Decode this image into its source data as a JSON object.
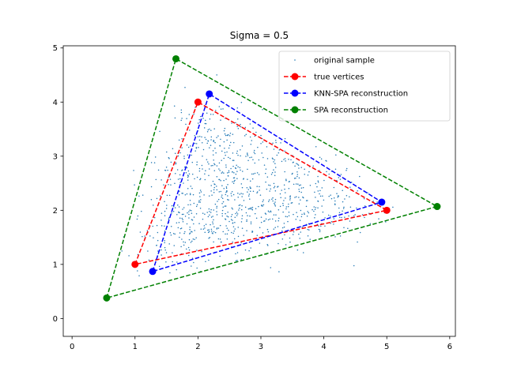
{
  "chart_data": {
    "type": "scatter",
    "title": "Sigma = 0.5",
    "xlabel": "",
    "ylabel": "",
    "xlim": [
      -0.14,
      6.09
    ],
    "ylim": [
      -0.33,
      5.04
    ],
    "xticks": [
      "0",
      "1",
      "2",
      "3",
      "4",
      "5",
      "6"
    ],
    "yticks": [
      "0",
      "1",
      "2",
      "3",
      "4",
      "5"
    ],
    "grid": false,
    "legend_position": "top-right",
    "sample": {
      "name": "original sample",
      "color": "#1f77b4",
      "n_points": 1000,
      "true_vertices": [
        [
          1.0,
          1.0
        ],
        [
          2.0,
          4.0
        ],
        [
          5.0,
          2.0
        ]
      ],
      "sigma": 0.5
    },
    "series": [
      {
        "name": "true vertices",
        "color": "#ff0000",
        "style": "dashed",
        "marker": "circle",
        "points": [
          [
            1.0,
            1.0
          ],
          [
            2.0,
            4.0
          ],
          [
            5.0,
            2.0
          ]
        ]
      },
      {
        "name": "KNN-SPA reconstruction",
        "color": "#0000ff",
        "style": "dashed",
        "marker": "circle",
        "points": [
          [
            1.28,
            0.87
          ],
          [
            2.18,
            4.15
          ],
          [
            4.92,
            2.15
          ]
        ]
      },
      {
        "name": "SPA reconstruction",
        "color": "#008000",
        "style": "dashed",
        "marker": "circle",
        "points": [
          [
            0.55,
            0.38
          ],
          [
            1.65,
            4.8
          ],
          [
            5.8,
            2.07
          ]
        ]
      }
    ]
  }
}
